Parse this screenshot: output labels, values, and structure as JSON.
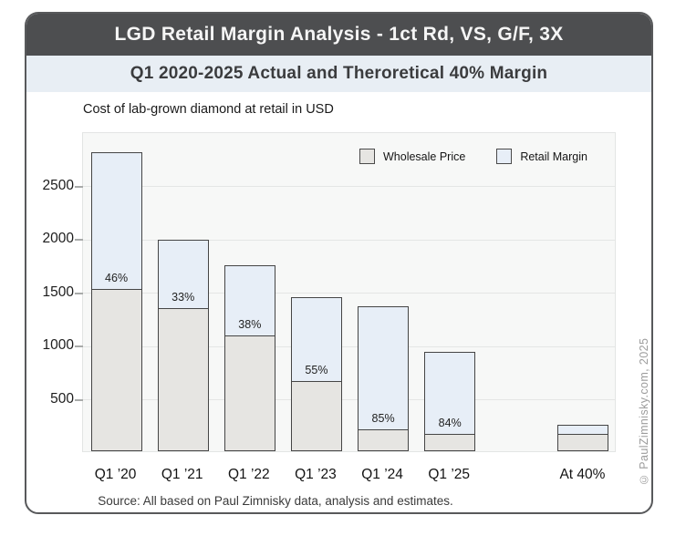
{
  "header": {
    "title": "LGD Retail Margin Analysis - 1ct Rd, VS, G/F, 3X",
    "subtitle": "Q1 2020-2025 Actual and Theroretical 40% Margin"
  },
  "footer": {
    "source": "Source: All based on Paul Zimnisky data, analysis and estimates.",
    "copyright": "© PaulZimnisky.com, 2025"
  },
  "colors": {
    "title_bar_bg": "#4d4e50",
    "title_text": "#f5f5f5",
    "subtitle_bg": "#e8eef4",
    "subtitle_text": "#3b3c3e",
    "card_border": "#58595b",
    "plot_bg": "#f7f8f7",
    "gridline": "#e4e6e5",
    "bar_border": "#454545",
    "wholesale_fill": "#e6e5e2",
    "retail_fill": "#e7eef7",
    "copyright_text": "#9c9c9c"
  },
  "chart_data": {
    "type": "bar",
    "stacked": true,
    "title": "Cost of lab-grown diamond at retail in USD",
    "categories": [
      "Q1 ’20",
      "Q1 ’21",
      "Q1 ’22",
      "Q1 ’23",
      "Q1 ’24",
      "Q1 ’25",
      "At 40%"
    ],
    "series": [
      {
        "name": "Wholesale Price",
        "values": [
          1515,
          1330,
          1080,
          650,
          200,
          150,
          150
        ]
      },
      {
        "name": "Retail Margin",
        "values": [
          1285,
          655,
          665,
          795,
          1155,
          785,
          100
        ]
      }
    ],
    "totals": [
      2800,
      1985,
      1745,
      1445,
      1355,
      935,
      250
    ],
    "margin_labels": [
      "46%",
      "33%",
      "38%",
      "55%",
      "85%",
      "84%",
      ""
    ],
    "xlabel": "",
    "ylabel": "",
    "ylim": [
      0,
      3000
    ],
    "yticks": [
      500,
      1000,
      1500,
      2000,
      2500
    ],
    "grid": true,
    "legend_position": "top-right",
    "layout": {
      "slots": 8,
      "slot_of_category": [
        0,
        1,
        2,
        3,
        4,
        5,
        7
      ]
    }
  }
}
